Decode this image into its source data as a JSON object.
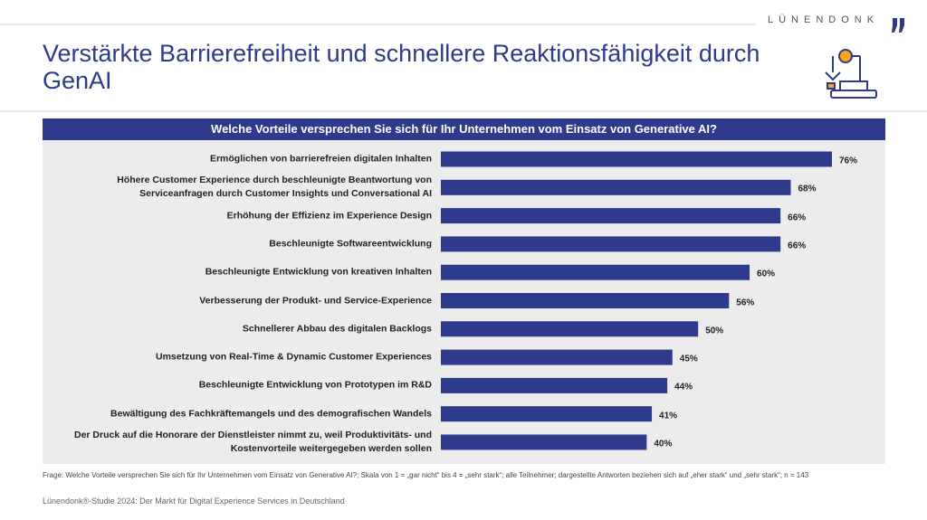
{
  "header": {
    "brand": "LÜNENDONK",
    "title": "Verstärkte Barrierefreiheit und schnellere Reaktionsfähigkeit durch GenAI"
  },
  "chart_data": {
    "type": "bar",
    "orientation": "horizontal",
    "title": "Welche Vorteile versprechen Sie sich für Ihr Unternehmen vom Einsatz von Generative AI?",
    "categories": [
      "Ermöglichen von barrierefreien digitalen Inhalten",
      "Höhere Customer Experience durch beschleunigte Beantwortung von\nServiceanfragen durch Customer Insights und Conversational AI",
      "Erhöhung der Effizienz im Experience Design",
      "Beschleunigte Softwareentwicklung",
      "Beschleunigte Entwicklung von kreativen Inhalten",
      "Verbesserung der Produkt- und Service-Experience",
      "Schnellerer Abbau des digitalen Backlogs",
      "Umsetzung von Real-Time & Dynamic Customer Experiences",
      "Beschleunigte Entwicklung von Prototypen im R&D",
      "Bewältigung des Fachkräftemangels und des demografischen Wandels",
      "Der Druck auf die Honorare der Dienstleister nimmt zu, weil Produktivitäts- und\nKostenvorteile weitergegeben werden sollen"
    ],
    "values": [
      76,
      68,
      66,
      66,
      60,
      56,
      50,
      45,
      44,
      41,
      40
    ],
    "value_labels": [
      "76%",
      "68%",
      "66%",
      "66%",
      "60%",
      "56%",
      "50%",
      "45%",
      "44%",
      "41%",
      "40%"
    ],
    "color": "#2e3a8c"
  },
  "footnote": "Frage: Welche Vorteile versprechen Sie sich für Ihr Unternehmen vom Einsatz von Generative AI?; Skala von 1 = „gar nicht“ bis 4 = „sehr stark“; alle Teilnehmer; dargestellte Antworten beziehen sich auf „eher stark“ und „sehr stark“; n = 143",
  "source": "Lünendonk®-Studie 2024: Der Markt für Digital Experience Services in Deutschland"
}
